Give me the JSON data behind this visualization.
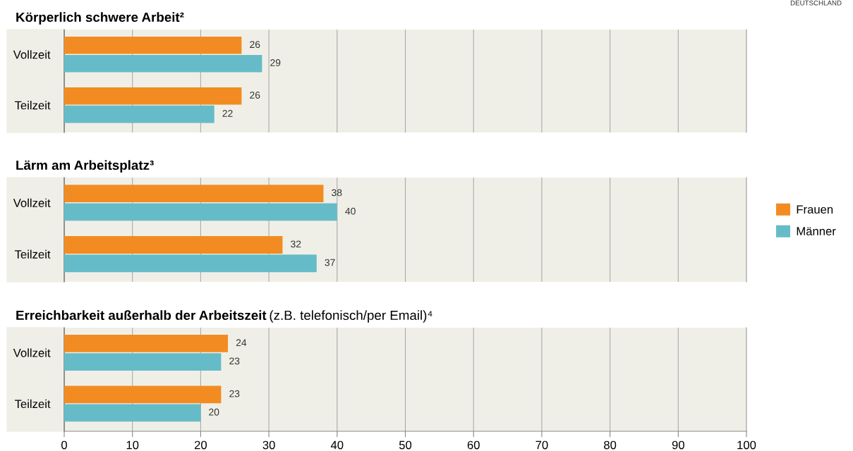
{
  "chart_data": [
    {
      "type": "bar",
      "orientation": "horizontal",
      "title": "Körperlich schwere Arbeit²",
      "categories": [
        "Vollzeit",
        "Teilzeit"
      ],
      "series": [
        {
          "name": "Frauen",
          "color": "#f28c22",
          "values": [
            26,
            26
          ]
        },
        {
          "name": "Männer",
          "color": "#65bcc8",
          "values": [
            29,
            22
          ]
        }
      ],
      "xlim": [
        0,
        100
      ],
      "xticks": [
        0,
        10,
        20,
        30,
        40,
        50,
        60,
        70,
        80,
        90,
        100
      ],
      "grid": "x",
      "data_labels": true,
      "tick_labels": "y",
      "legend": "right",
      "annotations": [
        "DEUTSCHLAND"
      ]
    },
    {
      "type": "bar",
      "orientation": "horizontal",
      "title": "Lärm am Arbeitsplatz³",
      "categories": [
        "Vollzeit",
        "Teilzeit"
      ],
      "series": [
        {
          "color": "#f28c22",
          "values": [
            38,
            32
          ]
        },
        {
          "color": "#65bcc8",
          "values": [
            40,
            37
          ]
        }
      ],
      "xlim": [
        0,
        100
      ],
      "xticks": [
        0,
        10,
        20,
        30,
        40,
        50,
        60,
        70,
        80,
        90,
        100
      ],
      "grid": "x",
      "data_labels": true,
      "tick_labels": "y"
    },
    {
      "type": "bar",
      "orientation": "horizontal",
      "title": "Erreichbarkeit außerhalb der Arbeitszeit",
      "subtitle": "(z.B. telefonisch/per Email)⁴",
      "categories": [
        "Vollzeit",
        "Teilzeit"
      ],
      "series": [
        {
          "color": "#f28c22",
          "values": [
            24,
            23
          ]
        },
        {
          "color": "#65bcc8",
          "values": [
            23,
            20
          ]
        }
      ],
      "xlim": [
        0,
        100
      ],
      "xticks": [
        0,
        10,
        20,
        30,
        40,
        50,
        60,
        70,
        80,
        90,
        100
      ],
      "grid": "x",
      "data_labels": true
    }
  ]
}
